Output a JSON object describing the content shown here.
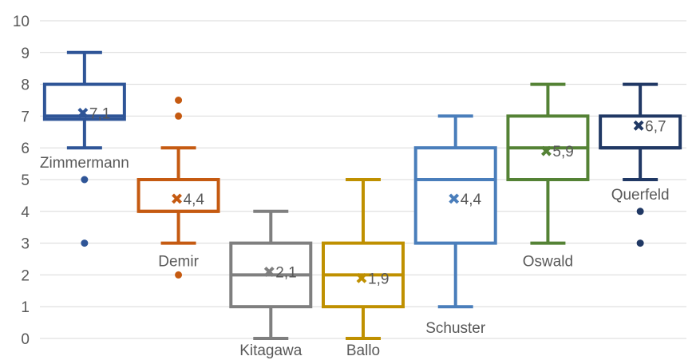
{
  "chart_data": {
    "type": "boxplot",
    "title": "",
    "xlabel": "",
    "ylabel": "",
    "ylim": [
      0,
      10
    ],
    "yticks": [
      "0",
      "1",
      "2",
      "3",
      "4",
      "5",
      "6",
      "7",
      "8",
      "9",
      "10"
    ],
    "grid": true,
    "legend": "none",
    "series": [
      {
        "name": "Zimmermann",
        "color": "#2f5597",
        "min": 6,
        "q1": 6.9,
        "median": 7,
        "q3": 8,
        "max": 9,
        "mean": 7.1,
        "mean_label": "7,1",
        "outliers": [
          5,
          3
        ]
      },
      {
        "name": "Demir",
        "color": "#c55a11",
        "min": 3,
        "q1": 4,
        "median": 4,
        "q3": 5,
        "max": 6,
        "mean": 4.4,
        "mean_label": "4,4",
        "outliers": [
          7.5,
          7,
          2
        ]
      },
      {
        "name": "Kitagawa",
        "color": "#7f7f7f",
        "min": 0,
        "q1": 1,
        "median": 2,
        "q3": 3,
        "max": 4,
        "mean": 2.1,
        "mean_label": "2,1",
        "outliers": []
      },
      {
        "name": "Ballo",
        "color": "#bf9000",
        "min": 0,
        "q1": 1,
        "median": 2,
        "q3": 3,
        "max": 5,
        "mean": 1.9,
        "mean_label": "1,9",
        "outliers": []
      },
      {
        "name": "Schuster",
        "color": "#4a7ebb",
        "min": 1,
        "q1": 3,
        "median": 5,
        "q3": 6,
        "max": 7,
        "mean": 4.4,
        "mean_label": "4,4",
        "outliers": []
      },
      {
        "name": "Oswald",
        "color": "#548235",
        "min": 3,
        "q1": 5,
        "median": 6,
        "q3": 7,
        "max": 8,
        "mean": 5.9,
        "mean_label": "5,9",
        "outliers": []
      },
      {
        "name": "Querfeld",
        "color": "#203864",
        "min": 5,
        "q1": 6,
        "median": 6,
        "q3": 7,
        "max": 8,
        "mean": 6.7,
        "mean_label": "6,7",
        "outliers": [
          4,
          3
        ]
      }
    ]
  }
}
